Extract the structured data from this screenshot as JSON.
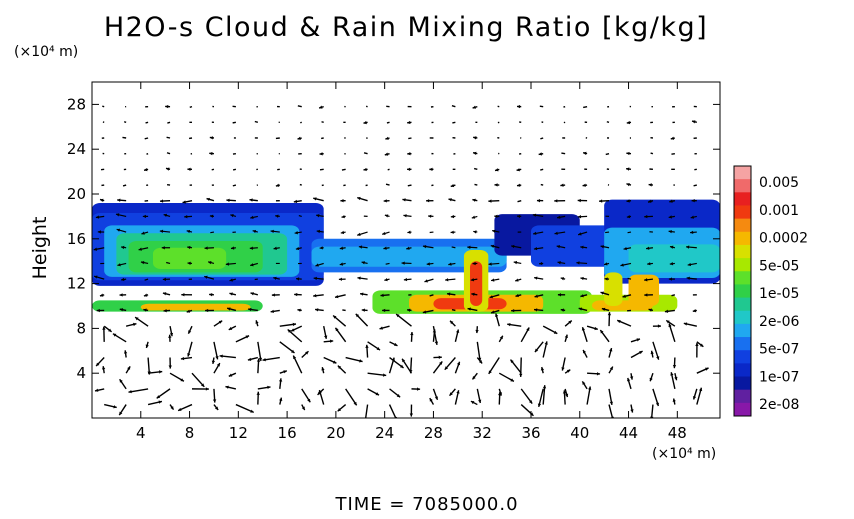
{
  "chart_data": {
    "type": "heatmap",
    "title": "H2O-s Cloud & Rain Mixing Ratio [kg/kg]",
    "xlabel": "",
    "ylabel": "Height",
    "x_units": "(×10⁴ m)",
    "y_units": "(×10⁴ m)",
    "xlim": [
      0,
      51.5
    ],
    "ylim": [
      0,
      30
    ],
    "x_ticks": [
      4,
      8,
      12,
      16,
      20,
      24,
      28,
      32,
      36,
      40,
      44,
      48
    ],
    "y_ticks": [
      4,
      8,
      12,
      16,
      20,
      24,
      28
    ],
    "colorbar": {
      "labels": [
        "0.005",
        "0.001",
        "0.0002",
        "5e-05",
        "1e-05",
        "2e-06",
        "5e-07",
        "1e-07",
        "2e-08"
      ],
      "colors": [
        "#f5a3a3",
        "#f06a6a",
        "#e82020",
        "#f03a10",
        "#f58a10",
        "#f5b800",
        "#d8e000",
        "#a8e800",
        "#5de02a",
        "#30d048",
        "#20c890",
        "#20c8c8",
        "#20a8f0",
        "#1870f0",
        "#1040e0",
        "#0a28c8",
        "#0818a0",
        "#6020a0",
        "#8818a8"
      ]
    },
    "series": [
      {
        "cloud_layer_x": [
          0,
          5,
          10,
          15,
          20,
          25,
          30,
          35,
          40,
          45,
          51.5
        ],
        "cloud_top_km_x10_4": [
          19.0,
          19.2,
          18.8,
          18.5,
          16.0,
          15.8,
          15.2,
          17.5,
          17.8,
          18.5,
          19.5
        ],
        "cloud_base_km_x10_4": [
          11.5,
          11.0,
          11.2,
          12.0,
          13.5,
          13.0,
          12.5,
          13.5,
          12.5,
          12.0,
          13.0
        ]
      }
    ],
    "annotations": [
      "TIME = 7085000.0"
    ]
  }
}
